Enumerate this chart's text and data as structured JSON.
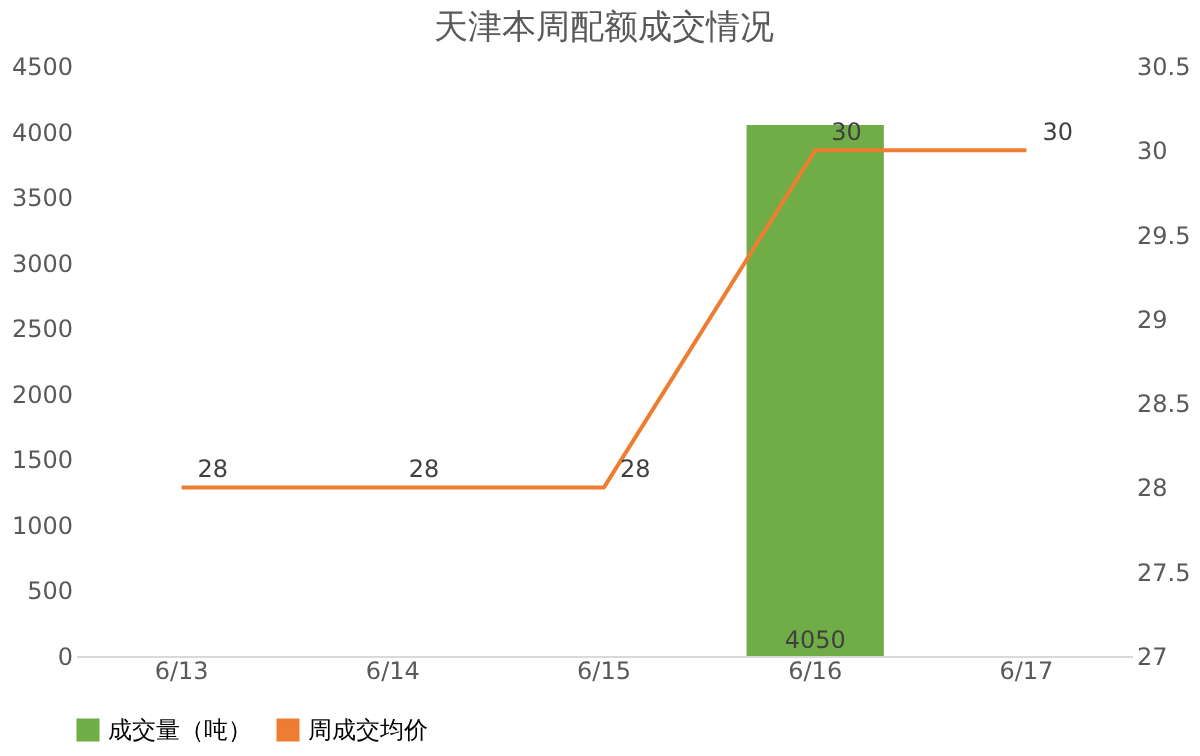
{
  "chart_data": {
    "type": "bar",
    "title": "天津本周配额成交情况",
    "categories": [
      "6/13",
      "6/14",
      "6/15",
      "6/16",
      "6/17"
    ],
    "series": [
      {
        "name": "成交量（吨）",
        "color": "#70ad47",
        "values": [
          null,
          null,
          null,
          4050,
          null
        ]
      },
      {
        "name": "周成交均价",
        "type": "line",
        "axis": "y2",
        "color": "#ed7d31",
        "values": [
          28,
          28,
          28,
          30,
          30
        ]
      }
    ],
    "ylim": [
      0,
      4500
    ],
    "yticks": [
      0,
      500,
      1000,
      1500,
      2000,
      2500,
      3000,
      3500,
      4000,
      4500
    ],
    "y2lim": [
      27,
      30.5
    ],
    "y2ticks": [
      27,
      27.5,
      28,
      28.5,
      29,
      29.5,
      30,
      30.5
    ],
    "data_labels": true,
    "grid": false,
    "legend": "bottom",
    "marker": "none",
    "line_style": "solid"
  }
}
